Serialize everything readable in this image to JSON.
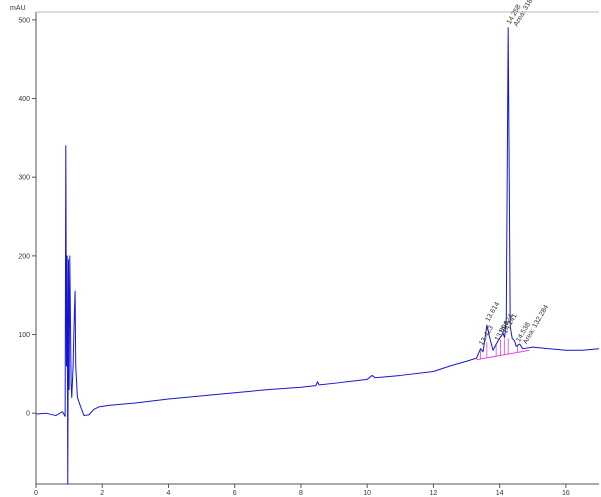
{
  "chart_data": {
    "type": "line",
    "title": "",
    "xlabel": "",
    "ylabel": "mAU",
    "xlim": [
      0,
      17
    ],
    "ylim": [
      -90,
      510
    ],
    "x_ticks": [
      0,
      2,
      4,
      6,
      8,
      10,
      12,
      14,
      16
    ],
    "y_ticks": [
      0,
      100,
      200,
      300,
      400,
      500
    ],
    "grid": false,
    "colors": {
      "signal": "#1515d6",
      "integration": "#e040e0",
      "axis": "#555555"
    },
    "series": [
      {
        "values": [
          [
            0.0,
            -1
          ],
          [
            0.3,
            0
          ],
          [
            0.6,
            -3
          ],
          [
            0.8,
            2
          ],
          [
            0.88,
            -4
          ],
          [
            0.9,
            340
          ],
          [
            0.92,
            60
          ],
          [
            0.94,
            200
          ],
          [
            0.96,
            -90
          ],
          [
            0.98,
            195
          ],
          [
            1.0,
            30
          ],
          [
            1.02,
            200
          ],
          [
            1.04,
            120
          ],
          [
            1.06,
            40
          ],
          [
            1.08,
            20
          ],
          [
            1.12,
            60
          ],
          [
            1.16,
            130
          ],
          [
            1.18,
            155
          ],
          [
            1.2,
            60
          ],
          [
            1.25,
            20
          ],
          [
            1.35,
            8
          ],
          [
            1.45,
            -3
          ],
          [
            1.6,
            -2
          ],
          [
            1.75,
            5
          ],
          [
            1.9,
            8
          ],
          [
            2.2,
            10
          ],
          [
            3.0,
            13
          ],
          [
            4.0,
            18
          ],
          [
            5.0,
            22
          ],
          [
            6.0,
            26
          ],
          [
            7.0,
            30
          ],
          [
            8.0,
            33
          ],
          [
            8.45,
            35
          ],
          [
            8.5,
            40
          ],
          [
            8.55,
            36
          ],
          [
            9.0,
            38
          ],
          [
            10.0,
            43
          ],
          [
            10.15,
            48
          ],
          [
            10.25,
            45
          ],
          [
            11.0,
            48
          ],
          [
            12.0,
            53
          ],
          [
            12.5,
            60
          ],
          [
            13.0,
            66
          ],
          [
            13.3,
            70
          ],
          [
            13.423,
            82
          ],
          [
            13.5,
            78
          ],
          [
            13.614,
            112
          ],
          [
            13.7,
            96
          ],
          [
            13.8,
            80
          ],
          [
            13.95,
            92
          ],
          [
            14.05,
            98
          ],
          [
            14.1,
            102
          ],
          [
            14.15,
            96
          ],
          [
            14.2,
            120
          ],
          [
            14.258,
            490
          ],
          [
            14.32,
            110
          ],
          [
            14.38,
            95
          ],
          [
            14.45,
            92
          ],
          [
            14.5,
            85
          ],
          [
            14.6,
            88
          ],
          [
            14.7,
            82
          ],
          [
            15.0,
            84
          ],
          [
            15.5,
            82
          ],
          [
            16.0,
            80
          ],
          [
            16.5,
            80
          ],
          [
            17.0,
            82
          ]
        ]
      }
    ],
    "integration_baseline": [
      [
        13.3,
        68
      ],
      [
        14.9,
        80
      ]
    ],
    "peaks": [
      {
        "rt": 13.423,
        "label": "13.423"
      },
      {
        "rt": 13.614,
        "label": "13.614"
      },
      {
        "rt": 13.894,
        "label": "13.894"
      },
      {
        "rt": 14.024,
        "label": "14.024"
      },
      {
        "rt": 14.141,
        "label": "14.141"
      },
      {
        "rt": 14.258,
        "label": "14.258",
        "area": "Area: 3183.42"
      },
      {
        "rt": 14.538,
        "label": "14.538",
        "area": "Area: 132.284"
      }
    ]
  }
}
